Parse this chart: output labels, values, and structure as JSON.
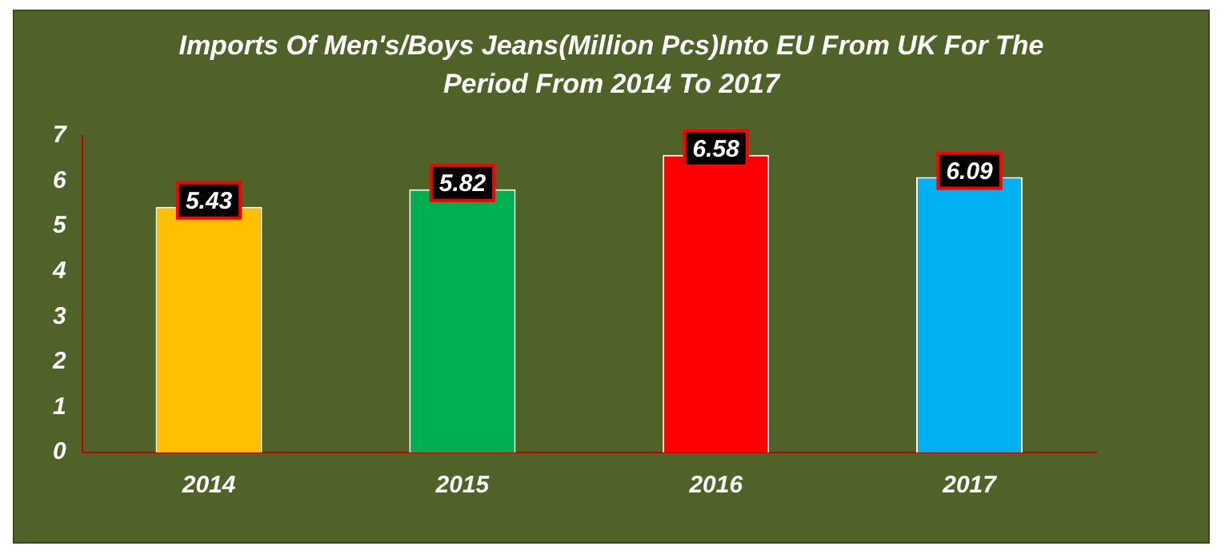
{
  "chart_data": {
    "type": "bar",
    "title": "Imports Of Men's/Boys Jeans(Million Pcs)Into EU From UK For The Period From 2014 To 2017",
    "categories": [
      "2014",
      "2015",
      "2016",
      "2017"
    ],
    "values": [
      5.43,
      5.82,
      6.58,
      6.09
    ],
    "colors": [
      "#ffc000",
      "#00b050",
      "#ff0000",
      "#00b0f0"
    ],
    "ylim": [
      0,
      7
    ],
    "yticks": [
      0,
      1,
      2,
      3,
      4,
      5,
      6,
      7
    ],
    "grid": false,
    "legend": false,
    "data_labels": true
  }
}
